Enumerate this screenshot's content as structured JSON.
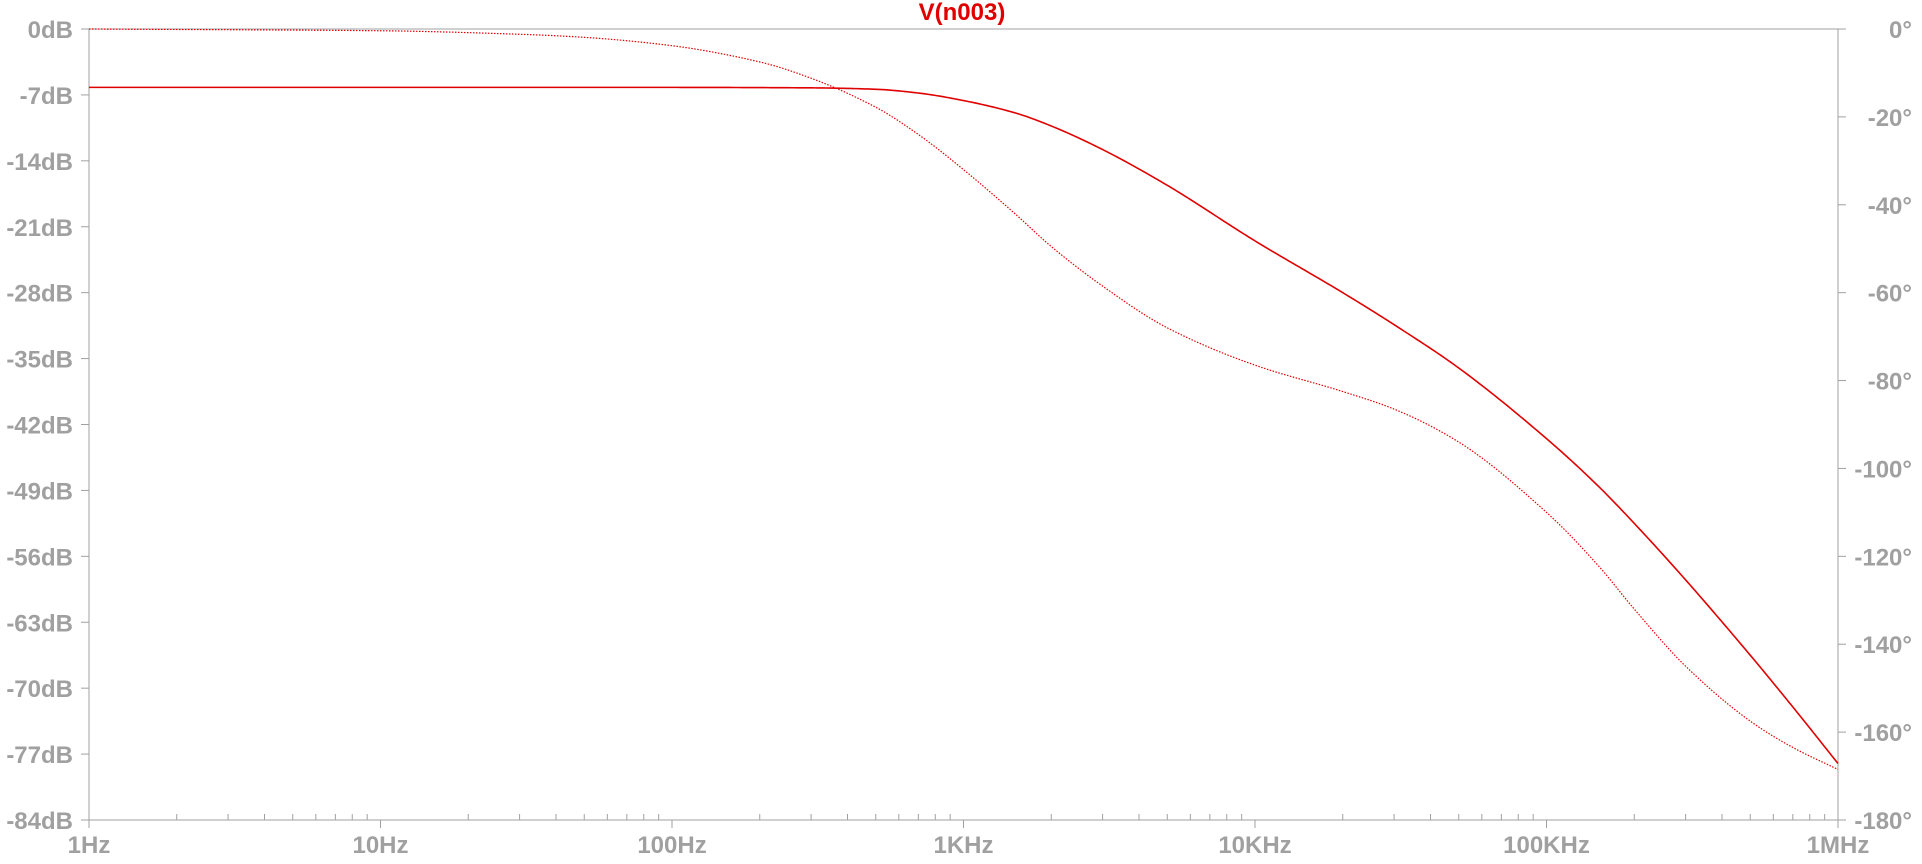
{
  "chart_data": {
    "type": "line",
    "title": "V(n003)",
    "x_scale": "log",
    "xlim": [
      1,
      1000000
    ],
    "ylim_left": [
      -84,
      0
    ],
    "ylim_right": [
      -180,
      0
    ],
    "x_ticks": [
      {
        "value": 1,
        "label": "1Hz"
      },
      {
        "value": 10,
        "label": "10Hz"
      },
      {
        "value": 100,
        "label": "100Hz"
      },
      {
        "value": 1000,
        "label": "1KHz"
      },
      {
        "value": 10000,
        "label": "10KHz"
      },
      {
        "value": 100000,
        "label": "100KHz"
      },
      {
        "value": 1000000,
        "label": "1MHz"
      }
    ],
    "y_left_ticks": [
      {
        "value": 0,
        "label": "0dB"
      },
      {
        "value": -7,
        "label": "-7dB"
      },
      {
        "value": -14,
        "label": "-14dB"
      },
      {
        "value": -21,
        "label": "-21dB"
      },
      {
        "value": -28,
        "label": "-28dB"
      },
      {
        "value": -35,
        "label": "-35dB"
      },
      {
        "value": -42,
        "label": "-42dB"
      },
      {
        "value": -49,
        "label": "-49dB"
      },
      {
        "value": -56,
        "label": "-56dB"
      },
      {
        "value": -63,
        "label": "-63dB"
      },
      {
        "value": -70,
        "label": "-70dB"
      },
      {
        "value": -77,
        "label": "-77dB"
      },
      {
        "value": -84,
        "label": "-84dB"
      }
    ],
    "y_right_ticks": [
      {
        "value": 0,
        "label": "0°"
      },
      {
        "value": -20,
        "label": "-20°"
      },
      {
        "value": -40,
        "label": "-40°"
      },
      {
        "value": -60,
        "label": "-60°"
      },
      {
        "value": -80,
        "label": "-80°"
      },
      {
        "value": -100,
        "label": "-100°"
      },
      {
        "value": -120,
        "label": "-120°"
      },
      {
        "value": -140,
        "label": "-140°"
      },
      {
        "value": -160,
        "label": "-160°"
      },
      {
        "value": -180,
        "label": "-180°"
      }
    ],
    "series": [
      {
        "kind": "magnitude",
        "axis": "left",
        "style": "solid",
        "color": "#e00000",
        "x": [
          1,
          10,
          100,
          300,
          500,
          700,
          1000,
          1500,
          2000,
          3000,
          5000,
          10000,
          20000,
          30000,
          50000,
          100000,
          150000,
          200000,
          300000,
          500000,
          700000,
          1000000
        ],
        "y": [
          -6.2,
          -6.2,
          -6.2,
          -6.25,
          -6.4,
          -6.8,
          -7.6,
          -8.9,
          -10.3,
          -12.8,
          -16.6,
          -22.5,
          -28.0,
          -31.4,
          -36.0,
          -43.5,
          -48.5,
          -52.5,
          -58.5,
          -66.5,
          -72.0,
          -78.0
        ]
      },
      {
        "kind": "phase",
        "axis": "right",
        "style": "dotted",
        "color": "#e00000",
        "x": [
          1,
          10,
          30,
          50,
          100,
          200,
          300,
          500,
          700,
          1000,
          1500,
          2000,
          3000,
          5000,
          10000,
          20000,
          30000,
          50000,
          100000,
          150000,
          200000,
          300000,
          500000,
          700000,
          1000000
        ],
        "y": [
          0,
          -0.4,
          -1.2,
          -1.9,
          -3.8,
          -7.5,
          -11.2,
          -17.8,
          -24.0,
          -32.0,
          -42.0,
          -49.5,
          -58.5,
          -68.0,
          -76.5,
          -82.5,
          -86.5,
          -94.0,
          -110.0,
          -122.0,
          -132.0,
          -145.0,
          -157.5,
          -163.5,
          -168.5
        ]
      }
    ]
  }
}
